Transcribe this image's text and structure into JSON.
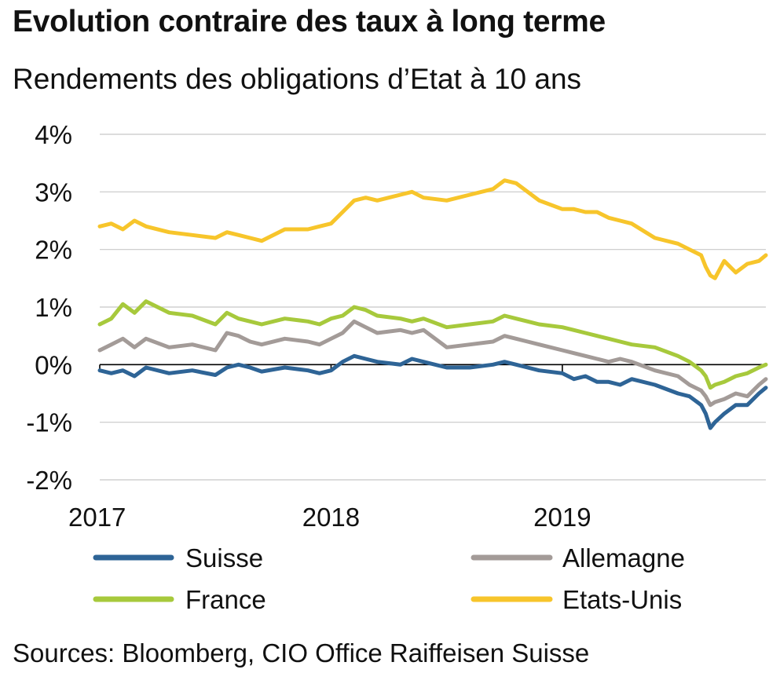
{
  "title": "Evolution contraire des taux à long terme",
  "subtitle": "Rendements des obligations d’Etat à 10 ans",
  "source": "Sources: Bloomberg, CIO Office Raiffeisen Suisse",
  "chart_data": {
    "type": "line",
    "title": "Evolution contraire des taux à long terme",
    "subtitle": "Rendements des obligations d’Etat à 10 ans",
    "xlabel": "",
    "ylabel": "",
    "xlim": [
      2017.0,
      2019.88
    ],
    "ylim": [
      -2,
      4
    ],
    "y_ticks": [
      -2,
      -1,
      0,
      1,
      2,
      3,
      4
    ],
    "y_tick_labels": [
      "-2%",
      "-1%",
      "0%",
      "1%",
      "2%",
      "3%",
      "4%"
    ],
    "x_ticks": [
      2017,
      2018,
      2019
    ],
    "x_tick_labels": [
      "2017",
      "2018",
      "2019"
    ],
    "grid": true,
    "legend": "bottom",
    "series": [
      {
        "name": "Suisse",
        "color": "#2e6496",
        "x": [
          2017.0,
          2017.05,
          2017.1,
          2017.15,
          2017.2,
          2017.3,
          2017.4,
          2017.5,
          2017.55,
          2017.6,
          2017.65,
          2017.7,
          2017.8,
          2017.9,
          2017.95,
          2018.0,
          2018.05,
          2018.1,
          2018.15,
          2018.2,
          2018.3,
          2018.35,
          2018.4,
          2018.5,
          2018.6,
          2018.7,
          2018.75,
          2018.8,
          2018.85,
          2018.9,
          2019.0,
          2019.05,
          2019.1,
          2019.15,
          2019.2,
          2019.25,
          2019.3,
          2019.4,
          2019.5,
          2019.55,
          2019.6,
          2019.62,
          2019.64,
          2019.66,
          2019.7,
          2019.75,
          2019.8,
          2019.85,
          2019.88
        ],
        "y": [
          -0.1,
          -0.15,
          -0.1,
          -0.2,
          -0.05,
          -0.15,
          -0.1,
          -0.18,
          -0.05,
          0.0,
          -0.05,
          -0.12,
          -0.05,
          -0.1,
          -0.15,
          -0.1,
          0.05,
          0.15,
          0.1,
          0.05,
          0.0,
          0.1,
          0.05,
          -0.05,
          -0.05,
          0.0,
          0.05,
          0.0,
          -0.05,
          -0.1,
          -0.15,
          -0.25,
          -0.2,
          -0.3,
          -0.3,
          -0.35,
          -0.25,
          -0.35,
          -0.5,
          -0.55,
          -0.7,
          -0.85,
          -1.1,
          -1.0,
          -0.85,
          -0.7,
          -0.7,
          -0.5,
          -0.4
        ]
      },
      {
        "name": "Allemagne",
        "color": "#a39b98",
        "x": [
          2017.0,
          2017.05,
          2017.1,
          2017.15,
          2017.2,
          2017.3,
          2017.4,
          2017.5,
          2017.55,
          2017.6,
          2017.65,
          2017.7,
          2017.8,
          2017.9,
          2017.95,
          2018.0,
          2018.05,
          2018.1,
          2018.15,
          2018.2,
          2018.3,
          2018.35,
          2018.4,
          2018.5,
          2018.6,
          2018.7,
          2018.75,
          2018.8,
          2018.85,
          2018.9,
          2019.0,
          2019.05,
          2019.1,
          2019.15,
          2019.2,
          2019.25,
          2019.3,
          2019.4,
          2019.5,
          2019.55,
          2019.6,
          2019.62,
          2019.64,
          2019.66,
          2019.7,
          2019.75,
          2019.8,
          2019.85,
          2019.88
        ],
        "y": [
          0.25,
          0.35,
          0.45,
          0.3,
          0.45,
          0.3,
          0.35,
          0.25,
          0.55,
          0.5,
          0.4,
          0.35,
          0.45,
          0.4,
          0.35,
          0.45,
          0.55,
          0.75,
          0.65,
          0.55,
          0.6,
          0.55,
          0.6,
          0.3,
          0.35,
          0.4,
          0.5,
          0.45,
          0.4,
          0.35,
          0.25,
          0.2,
          0.15,
          0.1,
          0.05,
          0.1,
          0.05,
          -0.1,
          -0.2,
          -0.35,
          -0.45,
          -0.55,
          -0.7,
          -0.65,
          -0.6,
          -0.5,
          -0.55,
          -0.35,
          -0.25
        ]
      },
      {
        "name": "France",
        "color": "#a7c93c",
        "x": [
          2017.0,
          2017.05,
          2017.1,
          2017.15,
          2017.2,
          2017.3,
          2017.4,
          2017.5,
          2017.55,
          2017.6,
          2017.65,
          2017.7,
          2017.8,
          2017.9,
          2017.95,
          2018.0,
          2018.05,
          2018.1,
          2018.15,
          2018.2,
          2018.3,
          2018.35,
          2018.4,
          2018.5,
          2018.6,
          2018.7,
          2018.75,
          2018.8,
          2018.85,
          2018.9,
          2019.0,
          2019.05,
          2019.1,
          2019.15,
          2019.2,
          2019.25,
          2019.3,
          2019.4,
          2019.5,
          2019.55,
          2019.6,
          2019.62,
          2019.64,
          2019.66,
          2019.7,
          2019.75,
          2019.8,
          2019.85,
          2019.88
        ],
        "y": [
          0.7,
          0.8,
          1.05,
          0.9,
          1.1,
          0.9,
          0.85,
          0.7,
          0.9,
          0.8,
          0.75,
          0.7,
          0.8,
          0.75,
          0.7,
          0.8,
          0.85,
          1.0,
          0.95,
          0.85,
          0.8,
          0.75,
          0.8,
          0.65,
          0.7,
          0.75,
          0.85,
          0.8,
          0.75,
          0.7,
          0.65,
          0.6,
          0.55,
          0.5,
          0.45,
          0.4,
          0.35,
          0.3,
          0.15,
          0.05,
          -0.1,
          -0.2,
          -0.4,
          -0.35,
          -0.3,
          -0.2,
          -0.15,
          -0.05,
          0.0
        ]
      },
      {
        "name": "Etats-Unis",
        "color": "#f7c52b",
        "x": [
          2017.0,
          2017.05,
          2017.1,
          2017.15,
          2017.2,
          2017.3,
          2017.4,
          2017.5,
          2017.55,
          2017.6,
          2017.65,
          2017.7,
          2017.8,
          2017.9,
          2017.95,
          2018.0,
          2018.05,
          2018.1,
          2018.15,
          2018.2,
          2018.3,
          2018.35,
          2018.4,
          2018.5,
          2018.6,
          2018.7,
          2018.75,
          2018.8,
          2018.85,
          2018.9,
          2019.0,
          2019.05,
          2019.1,
          2019.15,
          2019.2,
          2019.25,
          2019.3,
          2019.4,
          2019.5,
          2019.55,
          2019.6,
          2019.62,
          2019.64,
          2019.66,
          2019.7,
          2019.75,
          2019.8,
          2019.85,
          2019.88
        ],
        "y": [
          2.4,
          2.45,
          2.35,
          2.5,
          2.4,
          2.3,
          2.25,
          2.2,
          2.3,
          2.25,
          2.2,
          2.15,
          2.35,
          2.35,
          2.4,
          2.45,
          2.65,
          2.85,
          2.9,
          2.85,
          2.95,
          3.0,
          2.9,
          2.85,
          2.95,
          3.05,
          3.2,
          3.15,
          3.0,
          2.85,
          2.7,
          2.7,
          2.65,
          2.65,
          2.55,
          2.5,
          2.45,
          2.2,
          2.1,
          2.0,
          1.9,
          1.7,
          1.55,
          1.5,
          1.8,
          1.6,
          1.75,
          1.8,
          1.9
        ]
      }
    ]
  }
}
